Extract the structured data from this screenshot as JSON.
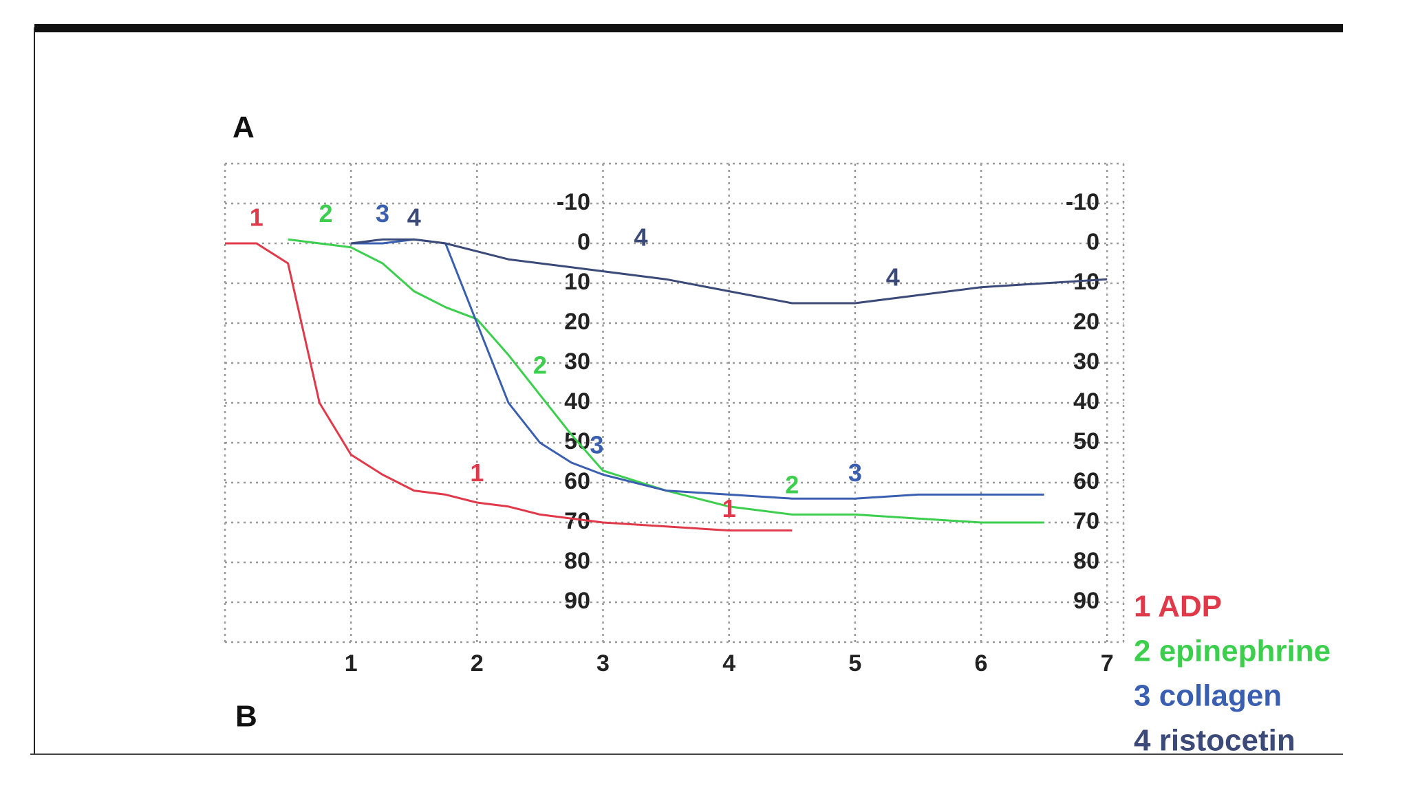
{
  "panel_labels": [
    "A",
    "B"
  ],
  "chart_data": {
    "type": "line",
    "x": [
      0,
      0.25,
      0.5,
      0.75,
      1,
      1.25,
      1.5,
      1.75,
      2,
      2.25,
      2.5,
      2.75,
      3,
      3.5,
      4,
      4.5,
      5,
      5.5,
      6,
      6.5,
      7
    ],
    "series": [
      {
        "name": "1 ADP",
        "color": "#e03a4a",
        "values": [
          0,
          0,
          5,
          40,
          53,
          58,
          62,
          63,
          65,
          66,
          68,
          69,
          70,
          71,
          72,
          72,
          null,
          null,
          null,
          null,
          null
        ]
      },
      {
        "name": "2 epinephrine",
        "color": "#3ccf4e",
        "values": [
          null,
          null,
          -1,
          0,
          1,
          5,
          12,
          16,
          19,
          28,
          38,
          48,
          57,
          62,
          66,
          68,
          68,
          69,
          70,
          70,
          null
        ]
      },
      {
        "name": "3 collagen",
        "color": "#3a5fb0",
        "values": [
          null,
          null,
          null,
          null,
          0,
          0,
          -1,
          0,
          20,
          40,
          50,
          55,
          58,
          62,
          63,
          64,
          64,
          63,
          63,
          63,
          null
        ]
      },
      {
        "name": "4 ristocetin",
        "color": "#3b4a78",
        "values": [
          null,
          null,
          null,
          null,
          0,
          -1,
          -1,
          0,
          2,
          4,
          5,
          6,
          7,
          9,
          12,
          15,
          15,
          13,
          11,
          10,
          9
        ]
      }
    ],
    "xlim": [
      0,
      7.13
    ],
    "xticks": [
      1,
      2,
      3,
      4,
      5,
      6,
      7
    ],
    "ylim": [
      -20,
      100
    ],
    "yticks": [
      -10,
      0,
      10,
      20,
      30,
      40,
      50,
      60,
      70,
      80,
      90
    ],
    "y_inverted": true,
    "grid": true,
    "legend": "lower right",
    "annotations": [
      {
        "text": "1",
        "x": 0.25,
        "y": -6,
        "color": "#e03a4a"
      },
      {
        "text": "2",
        "x": 0.8,
        "y": -7,
        "color": "#3ccf4e"
      },
      {
        "text": "3",
        "x": 1.25,
        "y": -7,
        "color": "#3a5fb0"
      },
      {
        "text": "4",
        "x": 1.5,
        "y": -6,
        "color": "#3b4a78"
      },
      {
        "text": "4",
        "x": 3.3,
        "y": -1,
        "color": "#3b4a78"
      },
      {
        "text": "4",
        "x": 5.3,
        "y": 9,
        "color": "#3b4a78"
      },
      {
        "text": "1",
        "x": 2.0,
        "y": 58,
        "color": "#e03a4a"
      },
      {
        "text": "2",
        "x": 2.5,
        "y": 31,
        "color": "#3ccf4e"
      },
      {
        "text": "3",
        "x": 2.95,
        "y": 51,
        "color": "#3a5fb0"
      },
      {
        "text": "3",
        "x": 5.0,
        "y": 58,
        "color": "#3a5fb0"
      },
      {
        "text": "2",
        "x": 4.5,
        "y": 61,
        "color": "#3ccf4e"
      },
      {
        "text": "1",
        "x": 4.0,
        "y": 67,
        "color": "#e03a4a"
      }
    ]
  }
}
